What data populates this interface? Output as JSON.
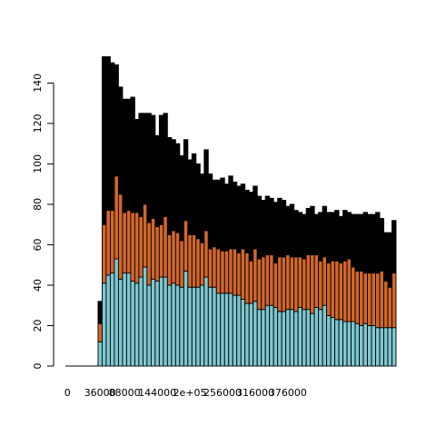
{
  "chart_data": {
    "type": "bar",
    "stacked": true,
    "title": "",
    "xlabel": "",
    "ylabel": "",
    "ylim": [
      0,
      155
    ],
    "grid": false,
    "legend": "none",
    "bar_outline_color": "#000000",
    "x_tick_labels": [
      "0",
      "36000",
      "88000",
      "144000",
      "2e+05",
      "256000",
      "316000",
      "376000"
    ],
    "y_ticks": [
      0,
      20,
      40,
      60,
      80,
      100,
      120,
      140
    ],
    "x_tick_bar_index": [
      0,
      8,
      14,
      22,
      30,
      38,
      46,
      54
    ],
    "series": [
      {
        "color": "#7ec8d1",
        "values": [
          0,
          0,
          0,
          0,
          0,
          0,
          0,
          0,
          12,
          41,
          45,
          46,
          53,
          43,
          46,
          46,
          42,
          41,
          44,
          49,
          40,
          43,
          42,
          44,
          44,
          40,
          41,
          40,
          39,
          47,
          39,
          39,
          39,
          40,
          44,
          39,
          39,
          36,
          36,
          36,
          36,
          35,
          35,
          33,
          31,
          31,
          32,
          28,
          28,
          30,
          30,
          29,
          27,
          27,
          28,
          28,
          27,
          29,
          28,
          28,
          26,
          29,
          28,
          30,
          25,
          24,
          23,
          23,
          22,
          22,
          22,
          21,
          20,
          21,
          20,
          20,
          19,
          19,
          19,
          19,
          19
        ]
      },
      {
        "color": "#d2672a",
        "values": [
          0,
          0,
          0,
          0,
          0,
          0,
          0,
          0,
          9,
          29,
          32,
          31,
          41,
          42,
          30,
          31,
          34,
          35,
          30,
          31,
          31,
          30,
          27,
          26,
          30,
          25,
          26,
          26,
          23,
          25,
          26,
          26,
          24,
          21,
          23,
          19,
          20,
          22,
          21,
          21,
          22,
          23,
          21,
          25,
          25,
          21,
          26,
          25,
          26,
          25,
          25,
          22,
          27,
          27,
          27,
          26,
          27,
          25,
          25,
          27,
          29,
          26,
          24,
          24,
          26,
          28,
          29,
          28,
          30,
          31,
          27,
          26,
          27,
          25,
          26,
          26,
          27,
          28,
          23,
          20,
          27
        ]
      },
      {
        "color": "#000000",
        "values": [
          0,
          0,
          0,
          0,
          0,
          0,
          0,
          0,
          11,
          83,
          76,
          73,
          55,
          53,
          56,
          55,
          57,
          46,
          51,
          45,
          54,
          51,
          45,
          54,
          51,
          48,
          45,
          44,
          42,
          40,
          37,
          40,
          37,
          34,
          40,
          37,
          33,
          34,
          36,
          33,
          36,
          33,
          33,
          32,
          31,
          34,
          31,
          31,
          28,
          29,
          28,
          30,
          29,
          28,
          24,
          26,
          23,
          22,
          22,
          23,
          24,
          20,
          24,
          25,
          25,
          24,
          25,
          23,
          25,
          23,
          26,
          28,
          28,
          30,
          29,
          29,
          30,
          26,
          24,
          27,
          26
        ]
      }
    ]
  }
}
